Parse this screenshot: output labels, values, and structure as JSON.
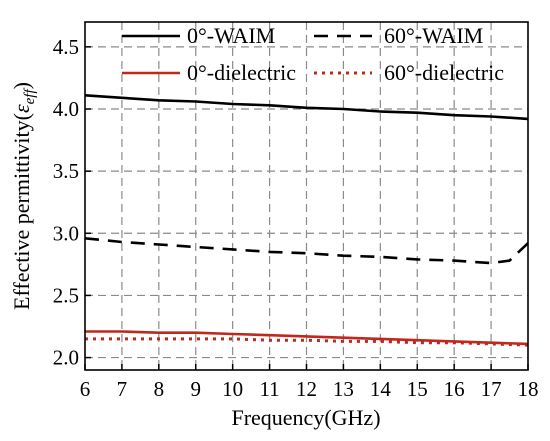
{
  "chart_data": {
    "type": "line",
    "xlabel": "Frequency(GHz)",
    "ylabel_prefix": "Effective permittivity(",
    "ylabel_symbol": "ε",
    "ylabel_subscript": "eff",
    "ylabel_suffix": ")",
    "xlim": [
      6,
      18
    ],
    "ylim": [
      1.9,
      4.7
    ],
    "xticks": [
      "6",
      "7",
      "8",
      "9",
      "10",
      "11",
      "12",
      "13",
      "14",
      "15",
      "16",
      "17",
      "18"
    ],
    "yticks": [
      "2.0",
      "2.5",
      "3.0",
      "3.5",
      "4.0",
      "4.5"
    ],
    "grid": true,
    "legend_position": "top",
    "series": [
      {
        "name": "0°-WAIM",
        "color": "#000000",
        "style": "solid",
        "x": [
          6,
          7,
          8,
          9,
          10,
          11,
          12,
          13,
          14,
          15,
          16,
          17,
          18
        ],
        "y": [
          4.11,
          4.09,
          4.07,
          4.06,
          4.04,
          4.03,
          4.01,
          4.0,
          3.98,
          3.97,
          3.95,
          3.94,
          3.92
        ]
      },
      {
        "name": "60°-WAIM",
        "color": "#000000",
        "style": "dashed",
        "x": [
          6,
          7,
          8,
          9,
          10,
          11,
          12,
          13,
          14,
          15,
          16,
          17,
          17.5,
          18
        ],
        "y": [
          2.96,
          2.93,
          2.91,
          2.89,
          2.87,
          2.85,
          2.84,
          2.82,
          2.81,
          2.79,
          2.78,
          2.76,
          2.78,
          2.92
        ]
      },
      {
        "name": "0°-dielectric",
        "color": "#c0281e",
        "style": "solid",
        "x": [
          6,
          7,
          8,
          9,
          10,
          11,
          12,
          13,
          14,
          15,
          16,
          17,
          18
        ],
        "y": [
          2.21,
          2.21,
          2.2,
          2.2,
          2.19,
          2.18,
          2.17,
          2.16,
          2.15,
          2.14,
          2.13,
          2.12,
          2.11
        ]
      },
      {
        "name": "60°-dielectric",
        "color": "#c0281e",
        "style": "dotted",
        "x": [
          6,
          7,
          8,
          9,
          10,
          11,
          12,
          13,
          14,
          15,
          16,
          17,
          18
        ],
        "y": [
          2.15,
          2.15,
          2.15,
          2.15,
          2.15,
          2.14,
          2.14,
          2.13,
          2.13,
          2.12,
          2.12,
          2.11,
          2.1
        ]
      }
    ]
  }
}
